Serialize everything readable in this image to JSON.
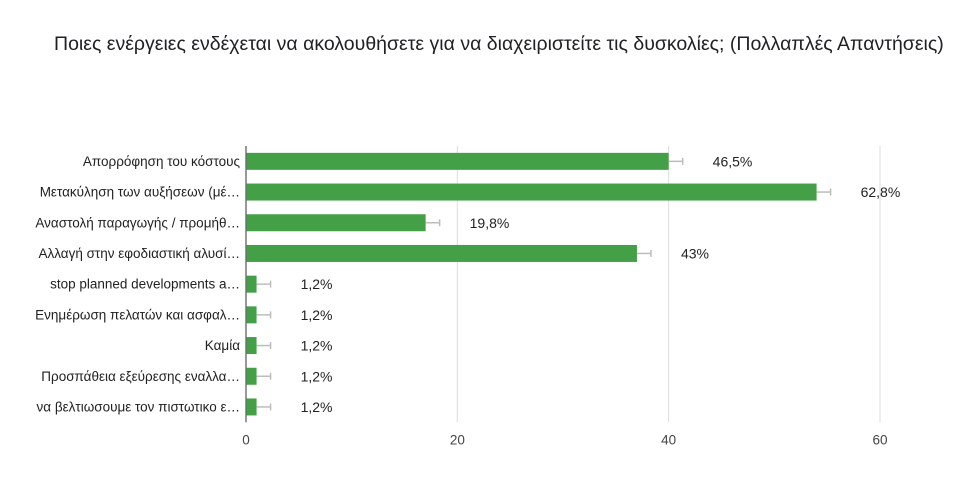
{
  "question": {
    "title": "Ποιες ενέργειες ενδέχεται να ακολουθήσετε για να διαχειριστείτε τις δυσκολίες; (Πολλαπλές Απαντήσεις)"
  },
  "chart_data": {
    "type": "bar",
    "orientation": "horizontal",
    "categories": [
      "Απορρόφηση του κόστους",
      "Μετακύληση των αυξήσεων (μέ…",
      "Αναστολή παραγωγής / προμήθ…",
      "Αλλαγή στην εφοδιαστική αλυσί…",
      "stop planned developments a…",
      "Ενημέρωση πελατών και ασφαλ…",
      "Καμία",
      "Προσπάθεια εξεύρεσης εναλλα…",
      "να βελτιωσουμε τον πιστωτικο ε…"
    ],
    "values": [
      40,
      54,
      17,
      37,
      1,
      1,
      1,
      1,
      1
    ],
    "labels": [
      "46,5%",
      "62,8%",
      "19,8%",
      "43%",
      "1,2%",
      "1,2%",
      "1,2%",
      "1,2%",
      "1,2%"
    ],
    "xlim": [
      0,
      60
    ],
    "xticks": [
      "0",
      "20",
      "40",
      "60"
    ],
    "grid": true,
    "bar_color": "#43a047",
    "error_bar_color": "#bdbdbd"
  }
}
